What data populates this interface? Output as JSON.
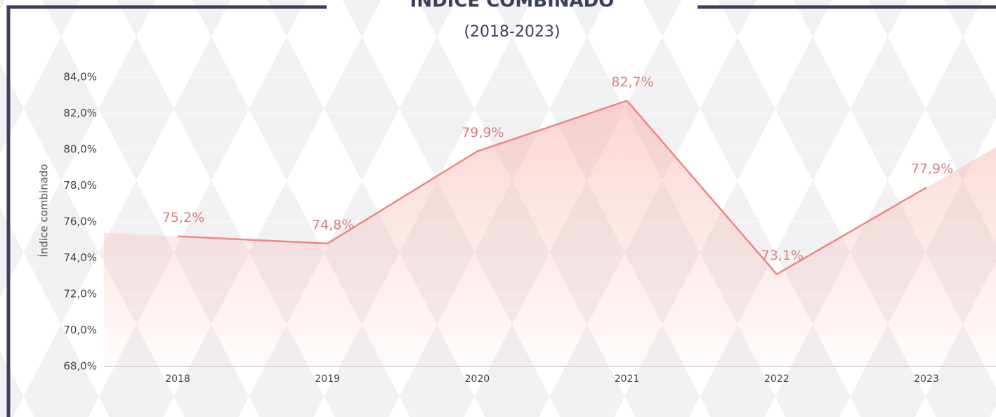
{
  "chart_data": {
    "type": "line",
    "title": "ÍNDICE COMBINADO",
    "subtitle": "(2018-2023)",
    "y_label": "Índice combinado",
    "categories": [
      "2018",
      "2019",
      "2020",
      "2021",
      "2022",
      "2023"
    ],
    "series": [
      {
        "name": "Índice combinado",
        "color": "#f08582",
        "values": [
          75.2,
          74.8,
          79.9,
          82.7,
          73.1,
          77.9
        ],
        "value_labels": [
          "75,2%",
          "74,8%",
          "79,9%",
          "82,7%",
          "73,1%",
          "77,9%"
        ]
      }
    ],
    "ylim": [
      68,
      84
    ],
    "yticks": [
      {
        "value": 68,
        "label": "68,0%"
      },
      {
        "value": 70,
        "label": "70,0%"
      },
      {
        "value": 72,
        "label": "72,0%"
      },
      {
        "value": 74,
        "label": "74,0%"
      },
      {
        "value": 76,
        "label": "76,0%"
      },
      {
        "value": 78,
        "label": "78,0%"
      },
      {
        "value": 80,
        "label": "80,0%"
      },
      {
        "value": 82,
        "label": "82,0%"
      },
      {
        "value": 84,
        "label": "84,0%"
      }
    ],
    "grid": true
  }
}
